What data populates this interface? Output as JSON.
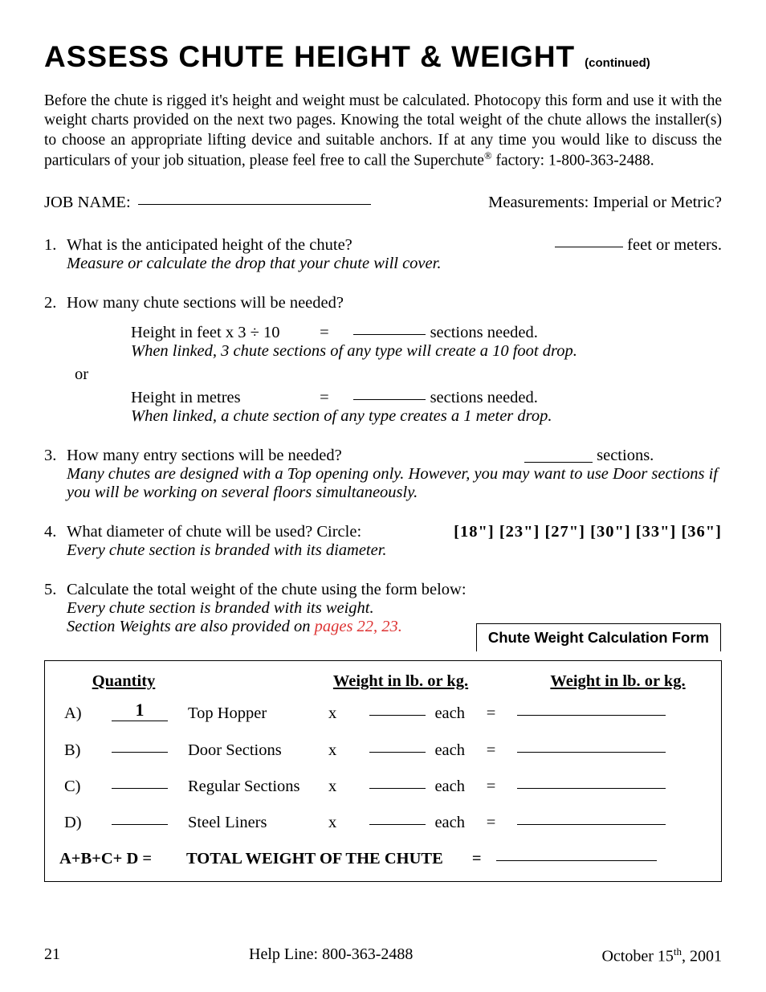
{
  "title": {
    "main": "ASSESS CHUTE HEIGHT & WEIGHT",
    "continued": "(continued)"
  },
  "intro": {
    "text_before_sup": "Before the chute is rigged it's height and weight must be calculated.  Photocopy this form and use it with the weight charts provided on the next two pages.  Knowing the total weight of the chute allows the installer(s) to choose an appropriate lifting device and suitable anchors.  If at any time you would like to discuss the particulars of your job situation, please feel free to call the Superchute",
    "sup": "®",
    "text_after_sup": " factory: 1-800-363-2488."
  },
  "job": {
    "label": "JOB NAME:",
    "measurements": "Measurements:  Imperial  or  Metric?"
  },
  "q1": {
    "num": "1.",
    "text": "What is the anticipated height of the chute?",
    "suffix": "feet or meters.",
    "hint": "Measure or calculate the drop that your chute will cover."
  },
  "q2": {
    "num": "2.",
    "text": "How many chute sections will be needed?",
    "imp_formula": "Height in feet x 3 ÷ 10",
    "eq": "=",
    "sections_needed": "sections needed.",
    "imp_hint": "When linked, 3 chute sections of any type will create a 10 foot drop.",
    "or": "or",
    "met_formula": "Height in metres",
    "met_hint": "When linked, a chute section of any type creates a 1 meter drop."
  },
  "q3": {
    "num": "3.",
    "text": "How many entry sections will be needed?",
    "suffix": "sections.",
    "hint": "Many chutes are designed with a Top opening only.  However, you may want to use Door sections if you will be working on several floors simultaneously."
  },
  "q4": {
    "num": "4.",
    "text": "What diameter of chute will be used? Circle:",
    "options": "[18\"]   [23\"]   [27\"]   [30\"]   [33\"]   [36\"]",
    "hint": "Every chute section is branded with its diameter."
  },
  "q5": {
    "num": "5.",
    "text": "Calculate the total weight of the chute using the form below:",
    "hint1": "Every chute section is branded with its weight.",
    "hint2_prefix": "Section Weights are also provided on ",
    "hint2_ref": "pages 22, 23."
  },
  "calc": {
    "form_title": "Chute Weight Calculation Form",
    "col_qty": "Quantity",
    "col_w1": "Weight in lb. or kg.",
    "col_w2": "Weight in lb. or kg.",
    "rows": [
      {
        "label": "A)",
        "qty": "1",
        "name": "Top Hopper",
        "x": "x",
        "each": "each",
        "eq": "="
      },
      {
        "label": "B)",
        "qty": "",
        "name": "Door Sections",
        "x": "x",
        "each": "each",
        "eq": "="
      },
      {
        "label": "C)",
        "qty": "",
        "name": "Regular Sections",
        "x": "x",
        "each": "each",
        "eq": "="
      },
      {
        "label": "D)",
        "qty": "",
        "name": "Steel Liners",
        "x": "x",
        "each": "each",
        "eq": "="
      }
    ],
    "footer_left": "A+B+C+ D  =",
    "footer_label": "TOTAL WEIGHT OF THE CHUTE",
    "footer_eq": "="
  },
  "footer": {
    "page": "21",
    "help": "Help Line: 800-363-2488",
    "date_prefix": "October 15",
    "date_sup": "th",
    "date_suffix": ", 2001"
  },
  "colors": {
    "text": "#000000",
    "background": "#ffffff",
    "ref": "#dd3333"
  }
}
